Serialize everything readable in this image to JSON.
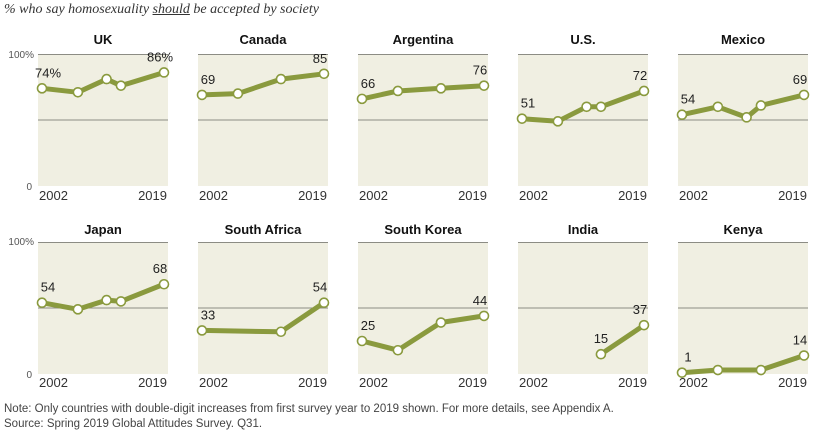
{
  "title": {
    "prefix": "% who say homosexuality ",
    "emphasis": "should",
    "suffix": " be accepted by society"
  },
  "axis": {
    "top_label": "100%",
    "bottom_label": "0",
    "start_year_label": "2002",
    "end_year_label": "2019"
  },
  "notes": {
    "note": "Note: Only countries with double-digit increases from first survey year to 2019 shown. For more details, see Appendix A.",
    "source": "Source: Spring 2019 Global Attitudes Survey. Q31."
  },
  "colors": {
    "line": "#8a9a3e",
    "panel_bg": "#f0efe2",
    "gridline": "#8c8c84",
    "marker_fill": "#ffffff"
  },
  "chart_data": {
    "type": "line",
    "ylim": [
      0,
      100
    ],
    "xlim": [
      2002,
      2019
    ],
    "panels": [
      {
        "name": "UK",
        "x": [
          2002,
          2007,
          2011,
          2013,
          2019
        ],
        "values": [
          74,
          71,
          81,
          76,
          86
        ],
        "labels": [
          "74%",
          "86%"
        ]
      },
      {
        "name": "Canada",
        "x": [
          2002,
          2007,
          2011,
          2013,
          2019
        ],
        "values": [
          69,
          70,
          null,
          81,
          85
        ],
        "labels": [
          "69",
          "85"
        ]
      },
      {
        "name": "Argentina",
        "x": [
          2002,
          2007,
          2011,
          2013,
          2019
        ],
        "values": [
          66,
          72,
          null,
          74,
          76
        ],
        "labels": [
          "66",
          "76"
        ]
      },
      {
        "name": "U.S.",
        "x": [
          2002,
          2007,
          2011,
          2013,
          2019
        ],
        "values": [
          51,
          49,
          60,
          60,
          72
        ],
        "labels": [
          "51",
          "72"
        ]
      },
      {
        "name": "Mexico",
        "x": [
          2002,
          2007,
          2011,
          2013,
          2019
        ],
        "values": [
          54,
          60,
          52,
          61,
          69
        ],
        "labels": [
          "54",
          "69"
        ]
      },
      {
        "name": "Japan",
        "x": [
          2002,
          2007,
          2011,
          2013,
          2019
        ],
        "values": [
          54,
          49,
          56,
          55,
          68
        ],
        "labels": [
          "54",
          "68"
        ]
      },
      {
        "name": "South Africa",
        "x": [
          2002,
          2007,
          2011,
          2013,
          2019
        ],
        "values": [
          33,
          null,
          null,
          32,
          54
        ],
        "labels": [
          "33",
          "54"
        ]
      },
      {
        "name": "South Korea",
        "x": [
          2002,
          2007,
          2011,
          2013,
          2019
        ],
        "values": [
          25,
          18,
          null,
          39,
          44
        ],
        "labels": [
          "25",
          "44"
        ]
      },
      {
        "name": "India",
        "x": [
          2002,
          2007,
          2011,
          2013,
          2019
        ],
        "values": [
          null,
          null,
          null,
          15,
          37
        ],
        "labels": [
          "15",
          "37"
        ]
      },
      {
        "name": "Kenya",
        "x": [
          2002,
          2007,
          2011,
          2013,
          2019
        ],
        "values": [
          1,
          3,
          null,
          3,
          14
        ],
        "labels": [
          "1",
          "14"
        ]
      }
    ]
  }
}
